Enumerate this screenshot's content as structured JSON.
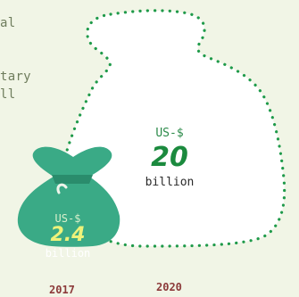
{
  "intro_lines": [
    "al",
    "",
    "tary",
    "ll"
  ],
  "bag_2020": {
    "prefix": "US-$",
    "value": "20",
    "unit": "billion",
    "year": "2020"
  },
  "bag_2017": {
    "prefix": "US-$",
    "value": "2.4",
    "unit": "billion",
    "year": "2017"
  },
  "colors": {
    "background": "#f1f5e6",
    "bag_fill": "#3aaa86",
    "bag_dark": "#2a8c6c",
    "dot_outline": "#1f9a4a",
    "big_value": "#1b8a3e",
    "small_value": "#eef27a",
    "intro_text": "#6f7d5d",
    "year_text": "#8c3a3a"
  },
  "icons": {
    "large_bag": "dotted-money-bag-outline",
    "small_bag": "money-bag-icon"
  }
}
